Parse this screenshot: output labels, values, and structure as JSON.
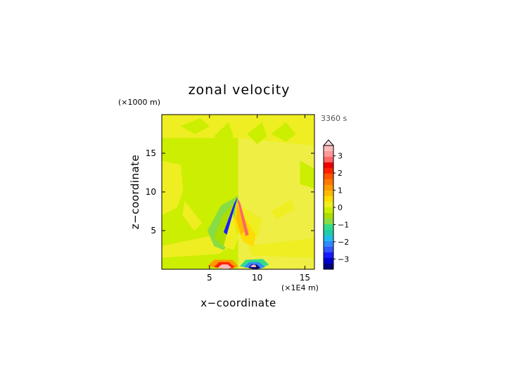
{
  "chart_data": {
    "type": "heatmap",
    "title": "zonal velocity",
    "time_label": "3360 s",
    "xlabel": "x−coordinate",
    "ylabel": "z−coordinate",
    "x_unit": "(×1E4 m)",
    "y_unit": "(×1000 m)",
    "xlim": [
      0,
      16
    ],
    "ylim": [
      0,
      20
    ],
    "x_ticks": [
      5,
      10,
      15
    ],
    "y_ticks": [
      5,
      10,
      15
    ],
    "colorbar": {
      "labels": [
        "3",
        "2",
        "1",
        "0",
        "−1",
        "−2",
        "−3"
      ],
      "label_values": [
        3,
        2,
        1,
        0,
        -1,
        -2,
        -3
      ],
      "colors": [
        "#000080",
        "#0000cc",
        "#1a1aff",
        "#3355ff",
        "#3388ff",
        "#22bbee",
        "#22ccaa",
        "#33dd88",
        "#88dd44",
        "#aadd00",
        "#ccee00",
        "#eeee22",
        "#ffdd00",
        "#ffbb00",
        "#ff9900",
        "#ff7700",
        "#ff5500",
        "#ff2200",
        "#ee0000",
        "#ff6666",
        "#ff9999",
        "#ffbbbb"
      ],
      "level_min": -3.6,
      "level_max": 3.6,
      "extend": "max"
    },
    "background_color": "#eeee44",
    "regions": [
      {
        "level": -0.1,
        "shape": "rect",
        "x": [
          0,
          8
        ],
        "y": [
          0,
          20
        ]
      },
      {
        "level": 0.1,
        "shape": "poly",
        "points": [
          [
            0,
            20
          ],
          [
            8,
            20
          ],
          [
            8,
            17
          ],
          [
            0,
            17
          ]
        ]
      },
      {
        "level": 0.1,
        "shape": "poly",
        "points": [
          [
            8,
            20
          ],
          [
            16,
            20
          ],
          [
            16,
            16
          ],
          [
            8,
            17
          ]
        ]
      },
      {
        "level": -0.1,
        "shape": "poly",
        "points": [
          [
            2,
            18.5
          ],
          [
            3.5,
            17.5
          ],
          [
            5,
            18.5
          ],
          [
            4,
            19.5
          ]
        ]
      },
      {
        "level": -0.1,
        "shape": "poly",
        "points": [
          [
            5.5,
            17.2
          ],
          [
            6.5,
            16
          ],
          [
            7.5,
            17.2
          ],
          [
            7,
            19
          ]
        ]
      },
      {
        "level": -0.1,
        "shape": "poly",
        "points": [
          [
            9,
            17.5
          ],
          [
            10,
            16.2
          ],
          [
            11,
            17.2
          ],
          [
            10.5,
            19
          ]
        ]
      },
      {
        "level": -0.1,
        "shape": "poly",
        "points": [
          [
            11.5,
            17.5
          ],
          [
            13,
            16.5
          ],
          [
            14,
            17.5
          ],
          [
            13,
            19
          ]
        ]
      },
      {
        "level": -0.1,
        "shape": "poly",
        "points": [
          [
            14.5,
            14
          ],
          [
            16,
            13
          ],
          [
            16,
            10.5
          ],
          [
            14.5,
            11
          ]
        ]
      },
      {
        "level": 0.1,
        "shape": "poly",
        "points": [
          [
            0,
            14
          ],
          [
            2,
            13.5
          ],
          [
            2.2,
            10
          ],
          [
            1.6,
            8
          ],
          [
            0,
            7
          ]
        ]
      },
      {
        "level": 0.1,
        "shape": "poly",
        "points": [
          [
            0,
            3
          ],
          [
            6,
            4.5
          ],
          [
            7.2,
            3
          ],
          [
            6,
            2
          ],
          [
            0,
            1.5
          ]
        ]
      },
      {
        "level": 0.1,
        "shape": "poly",
        "points": [
          [
            9,
            3
          ],
          [
            16,
            4
          ],
          [
            16,
            1.5
          ],
          [
            9.5,
            1.8
          ]
        ]
      },
      {
        "level": 0.1,
        "shape": "poly",
        "points": [
          [
            2.4,
            8.8
          ],
          [
            4.2,
            6
          ],
          [
            3.4,
            5
          ],
          [
            2.2,
            7
          ]
        ]
      },
      {
        "level": 0.1,
        "shape": "poly",
        "points": [
          [
            11.5,
            7.5
          ],
          [
            13.5,
            9
          ],
          [
            14,
            7.8
          ],
          [
            12,
            6.5
          ]
        ]
      },
      {
        "level": 0.1,
        "shape": "poly",
        "points": [
          [
            8.5,
            8
          ],
          [
            10.5,
            6.5
          ],
          [
            10,
            4
          ],
          [
            8.5,
            5
          ]
        ]
      },
      {
        "level": -0.8,
        "shape": "poly",
        "points": [
          [
            4.8,
            5
          ],
          [
            6.2,
            8.2
          ],
          [
            8,
            9.5
          ],
          [
            7.4,
            4.5
          ],
          [
            6.5,
            2.5
          ],
          [
            5.5,
            3
          ]
        ]
      },
      {
        "level": -0.5,
        "shape": "poly",
        "points": [
          [
            5.5,
            4
          ],
          [
            6.4,
            7
          ],
          [
            7.6,
            8.6
          ],
          [
            7.2,
            4
          ],
          [
            6.5,
            3
          ]
        ]
      },
      {
        "level": 0.5,
        "shape": "poly",
        "points": [
          [
            7.8,
            8.5
          ],
          [
            8.5,
            7
          ],
          [
            9.8,
            4.5
          ],
          [
            9.6,
            3
          ],
          [
            8.6,
            3.5
          ],
          [
            7.6,
            6
          ]
        ]
      },
      {
        "level": 0.9,
        "shape": "poly",
        "points": [
          [
            7.9,
            8.5
          ],
          [
            8.3,
            7
          ],
          [
            8.7,
            5
          ],
          [
            8.3,
            4.5
          ],
          [
            7.8,
            6.5
          ]
        ]
      },
      {
        "level": 0.3,
        "shape": "poly",
        "points": [
          [
            6.5,
            3
          ],
          [
            7.4,
            7.5
          ],
          [
            8,
            4
          ],
          [
            7.5,
            2.5
          ]
        ]
      },
      {
        "level": -2.8,
        "shape": "poly",
        "points": [
          [
            7.6,
            8.5
          ],
          [
            7.9,
            9.2
          ],
          [
            6.8,
            4.5
          ],
          [
            6.5,
            4.8
          ]
        ]
      },
      {
        "level": 2.8,
        "shape": "poly",
        "points": [
          [
            7.9,
            9.2
          ],
          [
            8.2,
            8.6
          ],
          [
            9.1,
            4.5
          ],
          [
            8.8,
            4.3
          ]
        ]
      },
      {
        "level": 1.3,
        "shape": "poly",
        "points": [
          [
            4.8,
            0.4
          ],
          [
            5.5,
            1.2
          ],
          [
            7.4,
            1.2
          ],
          [
            8,
            0.4
          ],
          [
            7.2,
            0
          ]
        ]
      },
      {
        "level": 2.2,
        "shape": "poly",
        "points": [
          [
            5.5,
            0.3
          ],
          [
            6,
            0.9
          ],
          [
            7,
            0.9
          ],
          [
            7.6,
            0.3
          ],
          [
            7,
            0
          ]
        ]
      },
      {
        "level": 3.6,
        "shape": "poly",
        "points": [
          [
            5.9,
            0.2
          ],
          [
            6.3,
            0.6
          ],
          [
            6.9,
            0.6
          ],
          [
            7.3,
            0.2
          ],
          [
            6.8,
            0
          ]
        ]
      },
      {
        "level": -1.0,
        "shape": "poly",
        "points": [
          [
            8.2,
            0.4
          ],
          [
            8.8,
            1.2
          ],
          [
            10.6,
            1.3
          ],
          [
            11.2,
            0.6
          ],
          [
            10,
            0
          ]
        ]
      },
      {
        "level": -2.2,
        "shape": "poly",
        "points": [
          [
            8.6,
            0.3
          ],
          [
            9.2,
            0.9
          ],
          [
            10.2,
            0.9
          ],
          [
            10.8,
            0.3
          ],
          [
            10,
            0
          ]
        ]
      },
      {
        "level": -3.6,
        "shape": "poly",
        "points": [
          [
            9.1,
            0.2
          ],
          [
            9.4,
            0.6
          ],
          [
            9.9,
            0.6
          ],
          [
            10.3,
            0.2
          ],
          [
            9.8,
            0
          ]
        ]
      },
      {
        "level": 3.6,
        "shape": "poly",
        "points": [
          [
            9.3,
            0.3
          ],
          [
            9.5,
            0.55
          ],
          [
            9.8,
            0.55
          ],
          [
            9.9,
            0.3
          ]
        ]
      }
    ]
  }
}
